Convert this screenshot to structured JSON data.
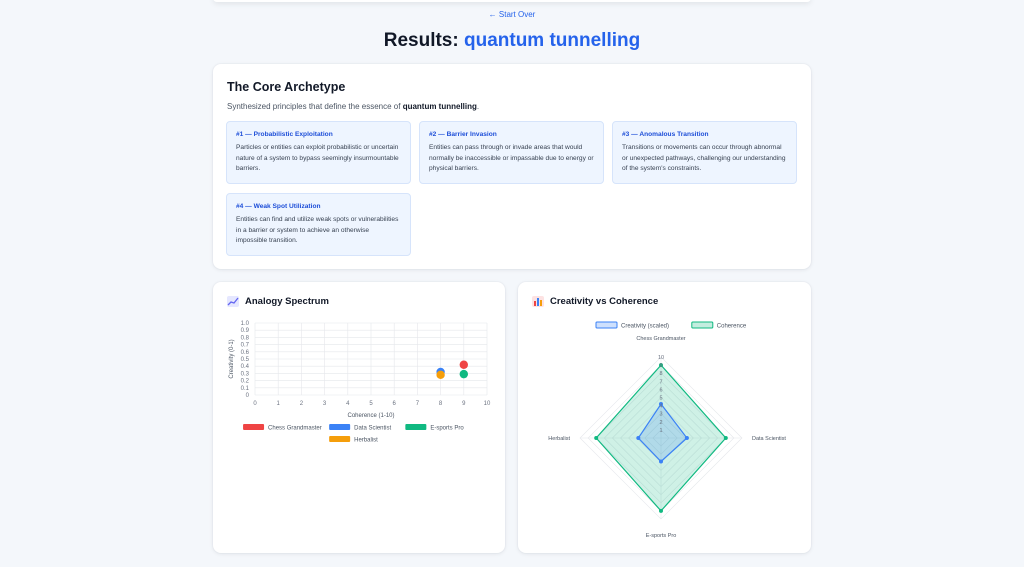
{
  "header": {
    "start_over": "← Start Over",
    "title_prefix": "Results:",
    "topic": "quantum tunnelling"
  },
  "archetype": {
    "heading": "The Core Archetype",
    "sub_prefix": "Synthesized principles that define the essence of",
    "sub_topic": "quantum tunnelling",
    "sub_suffix": ".",
    "principles": [
      {
        "title": "#1 — Probabilistic Exploitation",
        "body": "Particles or entities can exploit probabilistic or uncertain nature of a system to bypass seemingly insurmountable barriers."
      },
      {
        "title": "#2 — Barrier Invasion",
        "body": "Entities can pass through or invade areas that would normally be inaccessible or impassable due to energy or physical barriers."
      },
      {
        "title": "#3 — Anomalous Transition",
        "body": "Transitions or movements can occur through abnormal or unexpected pathways, challenging our understanding of the system's constraints."
      },
      {
        "title": "#4 — Weak Spot Utilization",
        "body": "Entities can find and utilize weak spots or vulnerabilities in a barrier or system to achieve an otherwise impossible transition."
      }
    ]
  },
  "spectrum": {
    "title": "Analogy Spectrum",
    "icon": "chart-line-icon"
  },
  "radar": {
    "title": "Creativity vs Coherence",
    "icon": "bar-chart-icon"
  },
  "chart_data": [
    {
      "type": "scatter",
      "xlabel": "Coherence (1-10)",
      "ylabel": "Creativity (0-1)",
      "xlim": [
        0,
        10
      ],
      "ylim": [
        0,
        1
      ],
      "x_ticks": [
        "0",
        "1",
        "2",
        "3",
        "4",
        "5",
        "6",
        "7",
        "8",
        "9",
        "10"
      ],
      "y_ticks": [
        "0",
        "0.1",
        "0.2",
        "0.3",
        "0.4",
        "0.5",
        "0.6",
        "0.7",
        "0.8",
        "0.9",
        "1.0"
      ],
      "grid": true,
      "legend_position": "bottom",
      "series": [
        {
          "name": "Chess Grandmaster",
          "color": "#ef4444",
          "x": [
            9
          ],
          "y": [
            0.42
          ]
        },
        {
          "name": "Data Scientist",
          "color": "#3b82f6",
          "x": [
            8
          ],
          "y": [
            0.32
          ]
        },
        {
          "name": "E-sports Pro",
          "color": "#10b981",
          "x": [
            9
          ],
          "y": [
            0.29
          ]
        },
        {
          "name": "Herbalist",
          "color": "#f59e0b",
          "x": [
            8
          ],
          "y": [
            0.28
          ]
        }
      ]
    },
    {
      "type": "radar",
      "categories": [
        "Chess Grandmaster",
        "Data Scientist",
        "E-sports Pro",
        "Herbalist"
      ],
      "r_ticks": [
        "1",
        "2",
        "3",
        "4",
        "5",
        "6",
        "7",
        "8",
        "9",
        "10"
      ],
      "rlim": [
        0,
        10
      ],
      "legend_position": "top",
      "series": [
        {
          "name": "Creativity (scaled)",
          "color": "#3b82f6",
          "values": [
            4.2,
            3.2,
            2.9,
            2.8
          ]
        },
        {
          "name": "Coherence",
          "color": "#10b981",
          "values": [
            9,
            8,
            9,
            8
          ]
        }
      ]
    }
  ]
}
